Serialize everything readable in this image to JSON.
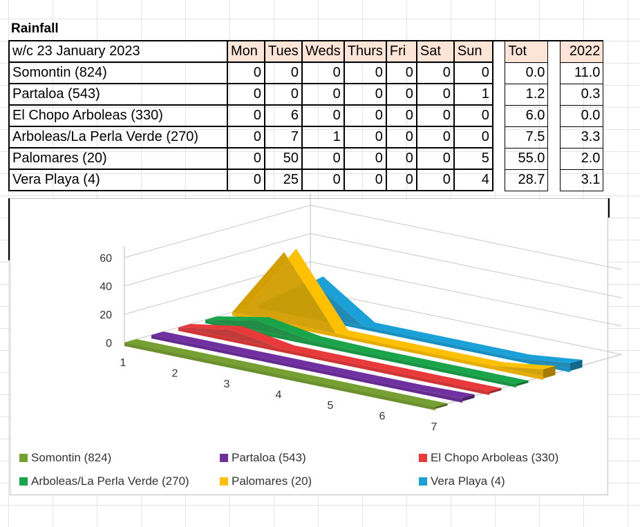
{
  "sheet": {
    "title": "Rainfall",
    "header_label": "w/c  23 January 2023",
    "days": [
      "Mon",
      "Tues",
      "Weds",
      "Thurs",
      "Fri",
      "Sat",
      "Sun"
    ],
    "tot_label": "Tot",
    "year_label": "2022",
    "rows": [
      {
        "name": "Somontin (824)",
        "values": [
          "0",
          "0",
          "0",
          "0",
          "0",
          "0",
          "0"
        ],
        "tot": "0.0",
        "prev": "11.0"
      },
      {
        "name": "Partaloa (543)",
        "values": [
          "0",
          "0",
          "0",
          "0",
          "0",
          "0",
          "1"
        ],
        "tot": "1.2",
        "prev": "0.3"
      },
      {
        "name": "El Chopo Arboleas (330)",
        "values": [
          "0",
          "6",
          "0",
          "0",
          "0",
          "0",
          "0"
        ],
        "tot": "6.0",
        "prev": "0.0"
      },
      {
        "name": "Arboleas/La Perla Verde (270)",
        "values": [
          "0",
          "7",
          "1",
          "0",
          "0",
          "0",
          "0"
        ],
        "tot": "7.5",
        "prev": "3.3"
      },
      {
        "name": "Palomares (20)",
        "values": [
          "0",
          "50",
          "0",
          "0",
          "0",
          "0",
          "5"
        ],
        "tot": "55.0",
        "prev": "2.0"
      },
      {
        "name": "Vera Playa (4)",
        "values": [
          "0",
          "25",
          "0",
          "0",
          "0",
          "0",
          "4"
        ],
        "tot": "28.7",
        "prev": "3.1"
      }
    ]
  },
  "chart_data": {
    "type": "area",
    "title": "",
    "categories": [
      "1",
      "2",
      "3",
      "4",
      "5",
      "6",
      "7"
    ],
    "yticks": [
      "0",
      "20",
      "40",
      "60"
    ],
    "ylim": [
      0,
      60
    ],
    "series": [
      {
        "name": "Somontin (824)",
        "values": [
          0,
          0,
          0,
          0,
          0,
          0,
          0
        ],
        "color": "#77a033"
      },
      {
        "name": "Partaloa (543)",
        "values": [
          0,
          0,
          0,
          0,
          0,
          0,
          1
        ],
        "color": "#7030a0"
      },
      {
        "name": "El Chopo Arboleas (330)",
        "values": [
          0,
          6,
          0,
          0,
          0,
          0,
          0
        ],
        "color": "#e83a3a"
      },
      {
        "name": "Arboleas/La Perla Verde (270)",
        "values": [
          0,
          7,
          1,
          0,
          0,
          0,
          0
        ],
        "color": "#1aa54a"
      },
      {
        "name": "Palomares (20)",
        "values": [
          0,
          50,
          0,
          0,
          0,
          0,
          5
        ],
        "color": "#ffc000"
      },
      {
        "name": "Vera Playa (4)",
        "values": [
          0,
          25,
          0,
          0,
          0,
          0,
          4
        ],
        "color": "#1ba1d8"
      }
    ],
    "legend_position": "bottom"
  }
}
